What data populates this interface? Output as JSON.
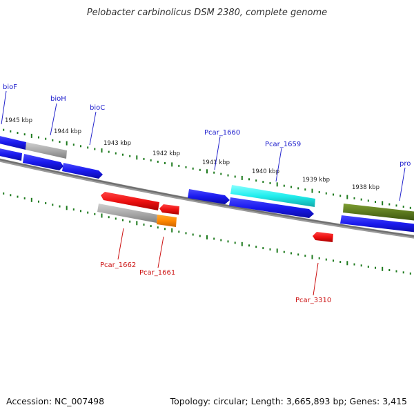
{
  "header": {
    "title": "Pelobacter carbinolicus DSM 2380, complete genome"
  },
  "footer": {
    "accession": "Accession: NC_007498",
    "topology": "Topology: circular; Length: 3,665,893 bp; Genes: 3,415"
  },
  "colors": {
    "blue": "#1a1aee",
    "gray": "#aaaaaa",
    "red": "#ee1111",
    "orange": "#ff8800",
    "cyan": "#22eeee",
    "olive": "#5c7a1e",
    "tick": "#1d7a1d",
    "backbone": "#777777",
    "label_top": "#1a1acc",
    "label_bottom": "#cc1111"
  },
  "scale_labels": [
    "1945 kbp",
    "1944 kbp",
    "1943 kbp",
    "1942 kbp",
    "1941 kbp",
    "1940 kbp",
    "1939 kbp",
    "1938 kbp"
  ],
  "gene_labels_top": [
    "bioF",
    "bioH",
    "bioC",
    "Pcar_1660",
    "Pcar_1659",
    "pro"
  ],
  "gene_labels_bottom": [
    "Pcar_1662",
    "Pcar_1661",
    "Pcar_3310"
  ]
}
